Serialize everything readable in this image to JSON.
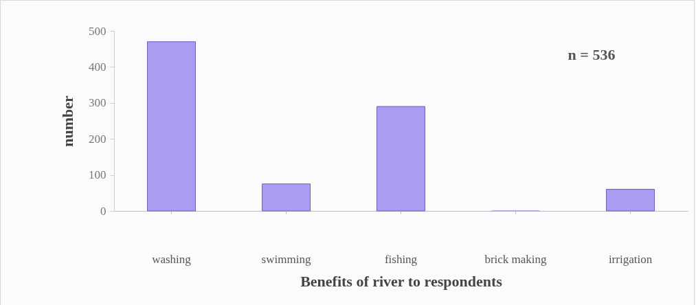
{
  "chart_data": {
    "type": "bar",
    "xlabel": "Benefits of river to respondents",
    "ylabel": "number",
    "categories": [
      "washing",
      "swimming",
      "fishing",
      "brick making",
      "irrigation"
    ],
    "values": [
      470,
      75,
      290,
      0,
      60
    ],
    "color": "#a99cf2",
    "ylim": [
      0,
      500
    ],
    "yticks": [
      0,
      100,
      200,
      300,
      400,
      500
    ],
    "grid": false,
    "annotations": [
      "n = 536"
    ]
  }
}
